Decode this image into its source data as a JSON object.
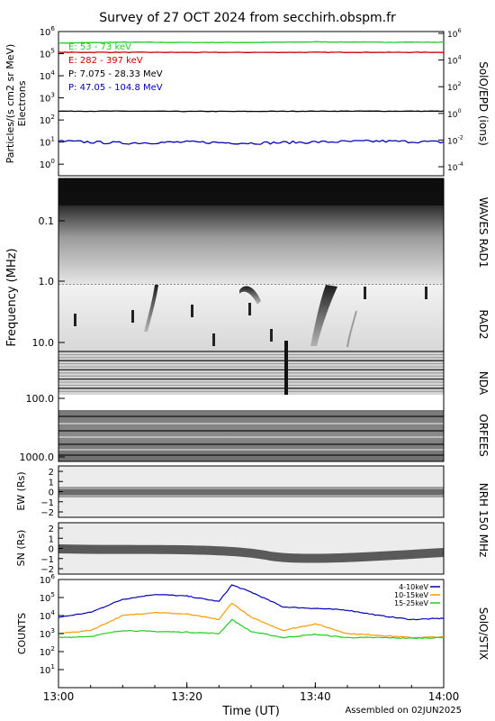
{
  "title": "Survey of 27 OCT 2024 from secchirh.obspm.fr",
  "footer": "Assembled on 02JUN2025",
  "x_axis": {
    "label": "Time (UT)",
    "ticks": [
      "13:00",
      "13:20",
      "13:40",
      "14:00"
    ]
  },
  "panels": {
    "particles": {
      "ylabel_main": "Particles/(s cm2 sr MeV)",
      "ylabel_sub": "Electrons",
      "right_label": "SolO/EPD (ions)",
      "left_ticks": [
        "10^0",
        "10^1",
        "10^2",
        "10^3",
        "10^4",
        "10^5",
        "10^6"
      ],
      "right_ticks": [
        "10^-4",
        "10^-2",
        "10^0",
        "10^2",
        "10^4",
        "10^6"
      ]
    },
    "radio": {
      "ylabel": "Frequency (MHz)",
      "ticks": [
        "0.1",
        "1.0",
        "10.0",
        "100.0",
        "1000.0"
      ],
      "right_labels": [
        "WAVES RAD1",
        "RAD2",
        "NDA",
        "ORFEES"
      ]
    },
    "nrh": {
      "right_label": "NRH 150 MHz",
      "ew_label": "EW (Rs)",
      "sn_label": "SN (Rs)",
      "ticks": [
        "2",
        "1",
        "0",
        "−1",
        "−2"
      ]
    },
    "stix": {
      "ylabel": "COUNTS",
      "right_label": "SolO/STIX",
      "ticks": [
        "10^1",
        "10^2",
        "10^3",
        "10^4",
        "10^5",
        "10^6"
      ]
    }
  },
  "colors": {
    "green": "#22cc22",
    "red": "#cc0000",
    "black": "#000000",
    "blue": "#0000bb",
    "orange": "#ff9900"
  },
  "chart_data": [
    {
      "type": "line",
      "ylabel": "Particles/(s cm2 sr MeV)",
      "y_scale": "log",
      "ylim": [
        0.3,
        1000000
      ],
      "x": [
        "13:00",
        "13:10",
        "13:20",
        "13:30",
        "13:40",
        "13:50",
        "14:00"
      ],
      "series": [
        {
          "name": "E: 53 - 73 keV",
          "color": "#22cc22",
          "values": [
            300000,
            330000,
            320000,
            320000,
            340000,
            330000,
            330000
          ]
        },
        {
          "name": "E: 282 - 397 keV",
          "color": "#cc0000",
          "values": [
            115000,
            115000,
            114000,
            114000,
            115000,
            115000,
            115000
          ]
        },
        {
          "name": "P: 7.075 - 28.33 MeV",
          "color": "#000000",
          "values": [
            250,
            250,
            245,
            245,
            250,
            250,
            250
          ]
        },
        {
          "name": "P: 47.05 - 104.8 MeV",
          "color": "#0000bb",
          "values": [
            11,
            9,
            10,
            9,
            10,
            11,
            10
          ]
        }
      ]
    },
    {
      "type": "line",
      "ylabel": "COUNTS",
      "y_scale": "log",
      "ylim": [
        1,
        1000000
      ],
      "x": [
        "13:00",
        "13:05",
        "13:10",
        "13:15",
        "13:20",
        "13:25",
        "13:27",
        "13:30",
        "13:35",
        "13:40",
        "13:45",
        "13:50",
        "13:55",
        "14:00"
      ],
      "series": [
        {
          "name": "4-10keV",
          "color": "#0000bb",
          "values": [
            8000,
            15000,
            80000,
            150000,
            120000,
            60000,
            500000,
            200000,
            30000,
            25000,
            20000,
            10000,
            6000,
            7000
          ]
        },
        {
          "name": "10-15keV",
          "color": "#ff9900",
          "values": [
            1000,
            1500,
            10000,
            15000,
            12000,
            6000,
            50000,
            8000,
            1500,
            3500,
            1000,
            800,
            600,
            650
          ]
        },
        {
          "name": "15-25keV",
          "color": "#22cc22",
          "values": [
            600,
            700,
            1500,
            1300,
            1200,
            1000,
            6000,
            1300,
            600,
            900,
            600,
            600,
            550,
            600
          ]
        }
      ]
    }
  ]
}
